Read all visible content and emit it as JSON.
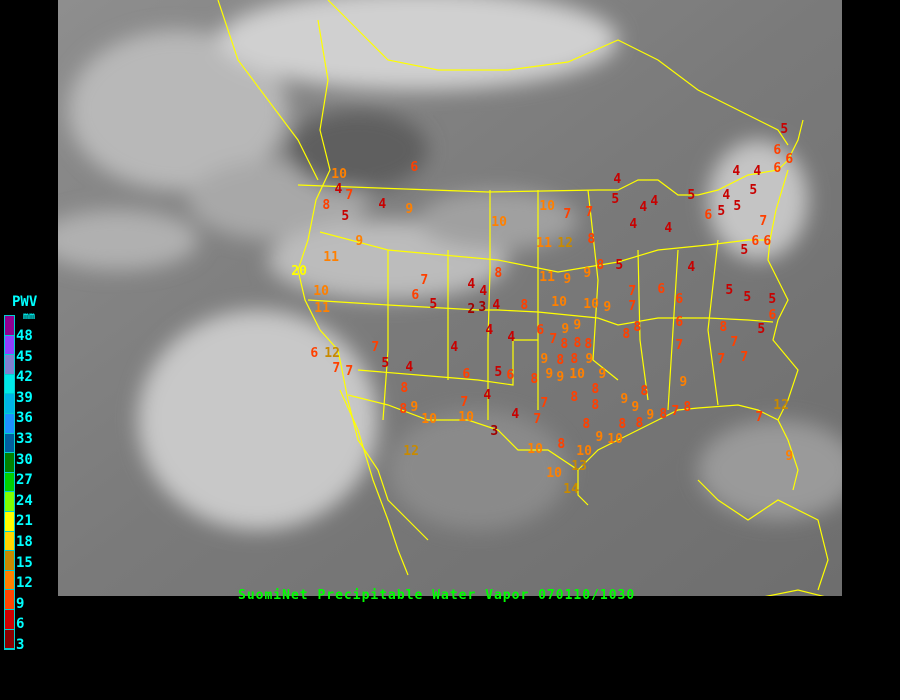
{
  "caption": "SuomiNet Precipitable Water Vapor 070110/1030",
  "legend": {
    "title": "PWV",
    "unit": "mm",
    "ticks": [
      "48",
      "45",
      "42",
      "39",
      "36",
      "33",
      "30",
      "27",
      "24",
      "21",
      "18",
      "15",
      "12",
      "9",
      "6",
      "3"
    ],
    "colors_top_to_bottom": [
      "#900090",
      "#9040ff",
      "#8080d0",
      "#00e8e8",
      "#00b4e6",
      "#1e90ff",
      "#005f9f",
      "#008000",
      "#00d000",
      "#80ff00",
      "#ffff00",
      "#ffd700",
      "#c88a00",
      "#ff8000",
      "#ff4500",
      "#d00000",
      "#8b0000"
    ]
  },
  "map": {
    "background": "GOES infrared satellite image",
    "boundary_color": "#ffff00"
  },
  "stations_mm": [
    6,
    10,
    4,
    7,
    8,
    5,
    4,
    9,
    9,
    11,
    20,
    10,
    11,
    7,
    6,
    5,
    4,
    4,
    3,
    2,
    4,
    4,
    4,
    8,
    10,
    10,
    7,
    7,
    11,
    12,
    8,
    11,
    9,
    9,
    8,
    5,
    8,
    10,
    10,
    9,
    7,
    7,
    8,
    6,
    6,
    4,
    5,
    5,
    5,
    6,
    8,
    5,
    6,
    4,
    5,
    4,
    4,
    4,
    4,
    5,
    4,
    5,
    4,
    4,
    6,
    5,
    6,
    6,
    7,
    6,
    5,
    5,
    5,
    6,
    6,
    7,
    7,
    7,
    9,
    8,
    6,
    7,
    9,
    9,
    8,
    8,
    8,
    8,
    8,
    9,
    9,
    9,
    10,
    9,
    9,
    8,
    8,
    6,
    12,
    7,
    7,
    7,
    5,
    4,
    4,
    6,
    5,
    6,
    4,
    8,
    9,
    8,
    10,
    10,
    7,
    3,
    4,
    7,
    7,
    8,
    8,
    8,
    10,
    8,
    10,
    13,
    10,
    14,
    12,
    9,
    10,
    9,
    9,
    8,
    8,
    9,
    8,
    7,
    8,
    8,
    7,
    12,
    9,
    7
  ]
}
